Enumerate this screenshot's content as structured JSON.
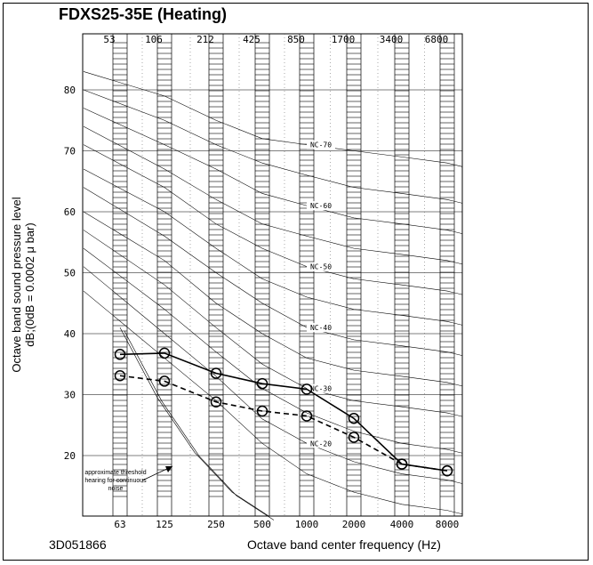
{
  "title": "FDXS25-35E (Heating)",
  "doc_id": "3D051866",
  "chart_data": {
    "type": "line",
    "title": "FDXS25-35E (Heating)",
    "xlabel": "Octave band center frequency (Hz)",
    "ylabel_line1": "Octave band sound pressure level",
    "ylabel_line2": "dB;(0dB = 0.0002 μ bar)",
    "categories": [
      "63",
      "125",
      "250",
      "500",
      "1000",
      "2000",
      "4000",
      "8000"
    ],
    "top_band_labels": [
      "53",
      "106",
      "212",
      "425",
      "850",
      "1700",
      "3400",
      "6800"
    ],
    "y_ticks": [
      "20",
      "30",
      "40",
      "50",
      "60",
      "70",
      "80"
    ],
    "ylim": [
      10,
      90
    ],
    "grid": true,
    "nc_curve_labels": [
      "NC-70",
      "NC-60",
      "NC-50",
      "NC-40",
      "NC-30",
      "NC-20"
    ],
    "nc_curves": [
      {
        "nc": 70,
        "values": [
          83,
          79,
          75,
          72,
          71,
          70,
          69,
          68
        ]
      },
      {
        "nc": 65,
        "values": [
          80,
          75,
          71,
          68,
          66,
          64,
          63,
          62
        ]
      },
      {
        "nc": 60,
        "values": [
          77,
          71,
          67,
          63,
          61,
          59,
          58,
          57
        ]
      },
      {
        "nc": 55,
        "values": [
          74,
          67,
          62,
          58,
          56,
          54,
          53,
          52
        ]
      },
      {
        "nc": 50,
        "values": [
          71,
          64,
          58,
          54,
          51,
          49,
          48,
          47
        ]
      },
      {
        "nc": 45,
        "values": [
          67,
          60,
          54,
          49,
          46,
          44,
          43,
          42
        ]
      },
      {
        "nc": 40,
        "values": [
          64,
          56,
          50,
          45,
          41,
          39,
          38,
          37
        ]
      },
      {
        "nc": 35,
        "values": [
          60,
          52,
          45,
          40,
          36,
          34,
          33,
          32
        ]
      },
      {
        "nc": 30,
        "values": [
          57,
          48,
          41,
          35,
          31,
          29,
          28,
          27
        ]
      },
      {
        "nc": 25,
        "values": [
          54,
          44,
          37,
          31,
          27,
          24,
          22,
          21
        ]
      },
      {
        "nc": 20,
        "values": [
          51,
          40,
          33,
          26,
          22,
          19,
          17,
          16
        ]
      },
      {
        "nc": 15,
        "values": [
          47,
          36,
          29,
          22,
          17,
          14,
          12,
          11
        ]
      }
    ],
    "threshold_curve": [
      41,
      29.5,
      20.5,
      14,
      10
    ],
    "threshold_label": [
      "approximate threshold",
      "hearing for continuous",
      "noise"
    ],
    "series": [
      {
        "style": "solid",
        "values": [
          36.6,
          36.8,
          33.5,
          31.8,
          30.9,
          26.1,
          18.6,
          17.5
        ]
      },
      {
        "style": "dashed",
        "values": [
          33.1,
          32.2,
          28.8,
          27.3,
          26.5,
          23.0,
          18.6,
          17.5
        ]
      }
    ]
  }
}
